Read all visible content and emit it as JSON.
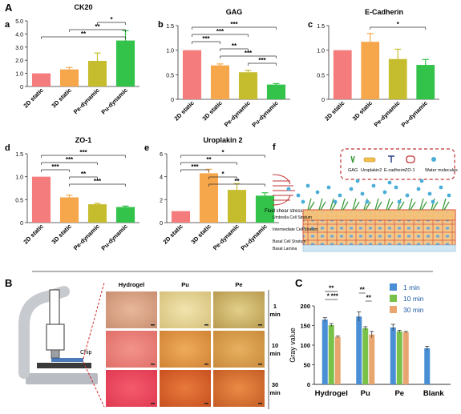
{
  "section_labels": {
    "A": "A",
    "B": "B",
    "C": "C"
  },
  "panel_letters": {
    "a": "a",
    "b": "b",
    "c": "c",
    "d": "d",
    "e": "e",
    "f": "f"
  },
  "colors": {
    "2D static": "#f47c7c",
    "3D static": "#f6a64b",
    "Pe-dynamic": "#c6bd2e",
    "Pu-dynamic": "#33c24a",
    "1 min": "#4a8fd6",
    "10 min": "#79c24a",
    "30 min": "#e8a56f"
  },
  "chart_data": [
    {
      "id": "a",
      "type": "bar",
      "title": "CK20",
      "categories": [
        "2D static",
        "3D static",
        "Pe-dynamic",
        "Pu-dynamic"
      ],
      "values": [
        1.0,
        1.3,
        1.95,
        3.5
      ],
      "errors": [
        0.0,
        0.15,
        0.6,
        0.75
      ],
      "ylim": [
        0,
        5
      ],
      "yticks": [
        "0",
        "1.0",
        "2.0",
        "3.0",
        "4.0",
        "5.0"
      ],
      "sig": [
        {
          "from": 2,
          "to": 3,
          "label": "*"
        },
        {
          "from": 1,
          "to": 3,
          "label": "**"
        },
        {
          "from": 0,
          "to": 3,
          "label": "**"
        }
      ]
    },
    {
      "id": "b",
      "type": "bar",
      "title": "GAG",
      "categories": [
        "2D static",
        "3D static",
        "Pe-dynamic",
        "Pu-dynamic"
      ],
      "values": [
        1.0,
        0.69,
        0.55,
        0.3
      ],
      "errors": [
        0.0,
        0.03,
        0.04,
        0.02
      ],
      "ylim": [
        0,
        1.5
      ],
      "yticks": [
        "0",
        "0.5",
        "1.0",
        "1.5"
      ],
      "sig": [
        {
          "from": 0,
          "to": 3,
          "label": "***"
        },
        {
          "from": 0,
          "to": 2,
          "label": "***"
        },
        {
          "from": 0,
          "to": 1,
          "label": "***"
        },
        {
          "from": 1,
          "to": 2,
          "label": "**"
        },
        {
          "from": 1,
          "to": 3,
          "label": "***"
        },
        {
          "from": 2,
          "to": 3,
          "label": "***"
        }
      ]
    },
    {
      "id": "c",
      "type": "bar",
      "title": "E-Cadherin",
      "categories": [
        "2D static",
        "3D static",
        "Pe-dynamic",
        "Pu-dynamic"
      ],
      "values": [
        1.0,
        1.17,
        0.82,
        0.7
      ],
      "errors": [
        0.0,
        0.17,
        0.2,
        0.11
      ],
      "ylim": [
        0,
        1.5
      ],
      "yticks": [
        "0",
        "0.5",
        "1.0",
        "1.5"
      ],
      "sig": [
        {
          "from": 1,
          "to": 3,
          "label": "*"
        }
      ]
    },
    {
      "id": "d",
      "type": "bar",
      "title": "ZO-1",
      "categories": [
        "2D static",
        "3D static",
        "Pe-dynamic",
        "Pu-dynamic"
      ],
      "values": [
        1.0,
        0.55,
        0.4,
        0.34
      ],
      "errors": [
        0.0,
        0.05,
        0.02,
        0.02
      ],
      "ylim": [
        0,
        1.5
      ],
      "yticks": [
        "0",
        "0.5",
        "1.0",
        "1.5"
      ],
      "sig": [
        {
          "from": 0,
          "to": 3,
          "label": "***"
        },
        {
          "from": 0,
          "to": 2,
          "label": "***"
        },
        {
          "from": 0,
          "to": 1,
          "label": "***"
        },
        {
          "from": 1,
          "to": 2,
          "label": "**"
        },
        {
          "from": 1,
          "to": 3,
          "label": "***"
        }
      ]
    },
    {
      "id": "e",
      "type": "bar",
      "title": "Uroplakin 2",
      "categories": [
        "2D static",
        "3D static",
        "Pe-dynamic",
        "Pu-dynamic"
      ],
      "values": [
        1.0,
        4.3,
        2.85,
        2.35
      ],
      "errors": [
        0.0,
        0.35,
        0.55,
        0.25
      ],
      "ylim": [
        0,
        6
      ],
      "yticks": [
        "0",
        "2",
        "4",
        "6"
      ],
      "sig": [
        {
          "from": 0,
          "to": 3,
          "label": "*"
        },
        {
          "from": 0,
          "to": 2,
          "label": "**"
        },
        {
          "from": 0,
          "to": 1,
          "label": "***"
        },
        {
          "from": 1,
          "to": 2,
          "label": "*"
        },
        {
          "from": 1,
          "to": 3,
          "label": "**"
        }
      ]
    },
    {
      "id": "C",
      "type": "bar",
      "title": "",
      "categories": [
        "Hydrogel",
        "Pu",
        "Pe",
        "Blank"
      ],
      "series": [
        {
          "name": "1 min",
          "values": [
            165,
            173,
            145,
            92
          ],
          "errors": [
            5,
            12,
            8,
            5
          ]
        },
        {
          "name": "10 min",
          "values": [
            151,
            143,
            135,
            null
          ],
          "errors": [
            4,
            4,
            3,
            null
          ]
        },
        {
          "name": "30 min",
          "values": [
            121,
            127,
            133,
            null
          ],
          "errors": [
            2,
            8,
            2,
            null
          ]
        }
      ],
      "ylabel": "Gray value",
      "ylim": [
        0,
        200
      ],
      "yticks": [
        "0",
        "50",
        "100",
        "150",
        "200"
      ],
      "legend": "top-right",
      "sig": [
        {
          "label": "**"
        },
        {
          "label": "*"
        },
        {
          "label": "***"
        },
        {
          "label": "**"
        },
        {
          "label": "**"
        }
      ]
    }
  ],
  "panel_f": {
    "legend_items": [
      "GAG",
      "Uroplakin2",
      "E-cadherin",
      "ZO-1",
      "Water molecules"
    ],
    "fluid_label": "Fluid shear stress",
    "layers": [
      "Umbrella Cell Stratum",
      "Intermediate Cell Stratum",
      "Basal Cell Stratum",
      "Basal Lamina"
    ]
  },
  "panel_B": {
    "columns": [
      "Hydrogel",
      "Pu",
      "Pe"
    ],
    "rows": [
      "1 min",
      "10 min",
      "30 min"
    ],
    "chip_label": "Chip"
  }
}
